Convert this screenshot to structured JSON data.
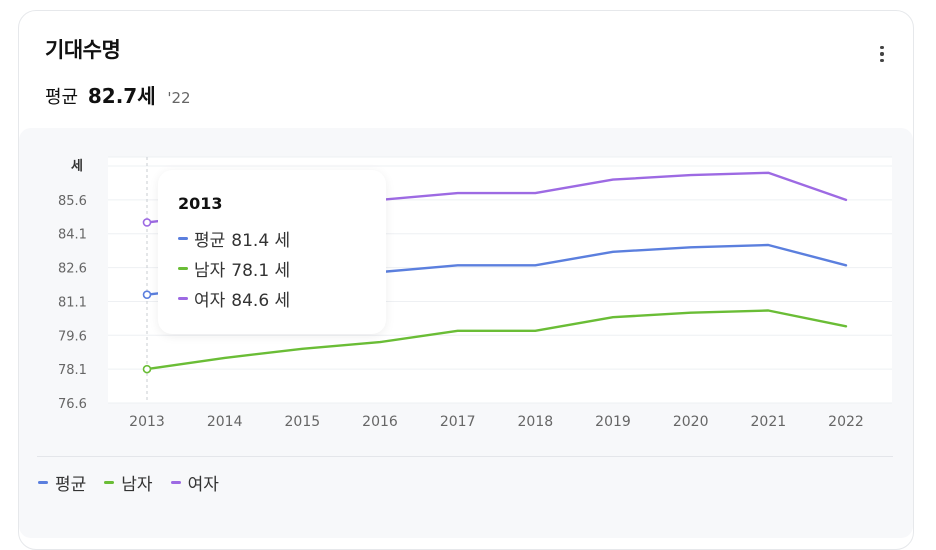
{
  "card": {
    "title": "기대수명",
    "subtitle_prefix": "평균",
    "subtitle_value": "82.7세",
    "subtitle_year": "'22"
  },
  "tooltip": {
    "year": "2013",
    "rows": [
      {
        "label": "평균",
        "value": "81.4 세"
      },
      {
        "label": "남자",
        "value": "78.1 세"
      },
      {
        "label": "여자",
        "value": "84.6 세"
      }
    ]
  },
  "legend": [
    {
      "label": "평균"
    },
    {
      "label": "남자"
    },
    {
      "label": "여자"
    }
  ],
  "colors": {
    "average": "#5b7fde",
    "male": "#6abd36",
    "female": "#9d6ae3"
  },
  "chart_data": {
    "type": "line",
    "title": "",
    "ylabel": "세",
    "x": [
      "2013",
      "2014",
      "2015",
      "2016",
      "2017",
      "2018",
      "2019",
      "2020",
      "2021",
      "2022"
    ],
    "yticks": [
      76.6,
      78.1,
      79.6,
      81.1,
      82.6,
      84.1,
      85.6
    ],
    "ylim": [
      76.6,
      87.5
    ],
    "grid": true,
    "series": [
      {
        "name": "평균",
        "key": "average",
        "values": [
          81.4,
          81.8,
          82.1,
          82.4,
          82.7,
          82.7,
          83.3,
          83.5,
          83.6,
          82.7
        ]
      },
      {
        "name": "남자",
        "key": "male",
        "values": [
          78.1,
          78.6,
          79.0,
          79.3,
          79.8,
          79.8,
          80.4,
          80.6,
          80.7,
          80.0
        ]
      },
      {
        "name": "여자",
        "key": "female",
        "values": [
          84.6,
          85.0,
          85.3,
          85.6,
          85.9,
          85.9,
          86.5,
          86.7,
          86.8,
          85.6
        ]
      }
    ],
    "highlight_index": 0
  }
}
